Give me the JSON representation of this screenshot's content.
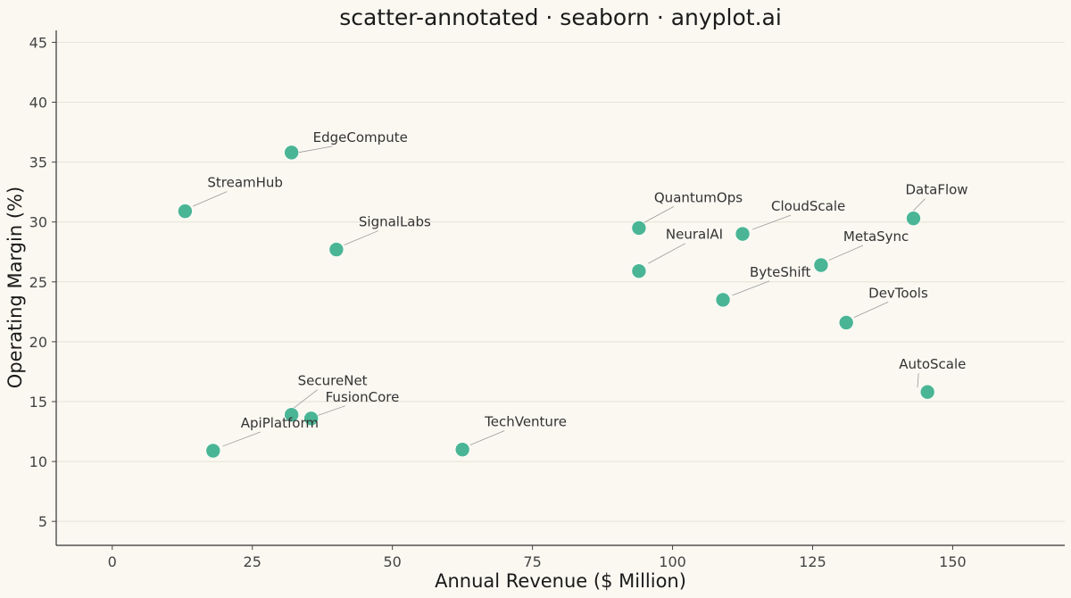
{
  "chart_data": {
    "type": "scatter",
    "title": "scatter-annotated · seaborn · anyplot.ai",
    "xlabel": "Annual Revenue ($ Million)",
    "ylabel": "Operating Margin (%)",
    "xlim": [
      -10,
      170
    ],
    "ylim": [
      3,
      46
    ],
    "xticks": [
      0,
      25,
      50,
      75,
      100,
      125,
      150
    ],
    "yticks": [
      5,
      10,
      15,
      20,
      25,
      30,
      35,
      40,
      45
    ],
    "grid": "horizontal",
    "point_color": "#4AB595",
    "points": [
      {
        "label": "EdgeCompute",
        "x": 32,
        "y": 35.8
      },
      {
        "label": "StreamHub",
        "x": 13,
        "y": 30.9
      },
      {
        "label": "SignalLabs",
        "x": 40,
        "y": 27.7
      },
      {
        "label": "QuantumOps",
        "x": 94,
        "y": 29.5
      },
      {
        "label": "NeuralAI",
        "x": 94,
        "y": 25.9
      },
      {
        "label": "CloudScale",
        "x": 112.5,
        "y": 29.0
      },
      {
        "label": "ByteShift",
        "x": 109,
        "y": 23.5
      },
      {
        "label": "DataFlow",
        "x": 143,
        "y": 30.3
      },
      {
        "label": "MetaSync",
        "x": 126.5,
        "y": 26.4
      },
      {
        "label": "DevTools",
        "x": 131,
        "y": 21.6
      },
      {
        "label": "AutoScale",
        "x": 145.5,
        "y": 15.8
      },
      {
        "label": "SecureNet",
        "x": 32,
        "y": 13.9
      },
      {
        "label": "FusionCore",
        "x": 35.5,
        "y": 13.6
      },
      {
        "label": "ApiPlatform",
        "x": 18,
        "y": 10.9
      },
      {
        "label": "TechVenture",
        "x": 62.5,
        "y": 11.0
      }
    ]
  }
}
